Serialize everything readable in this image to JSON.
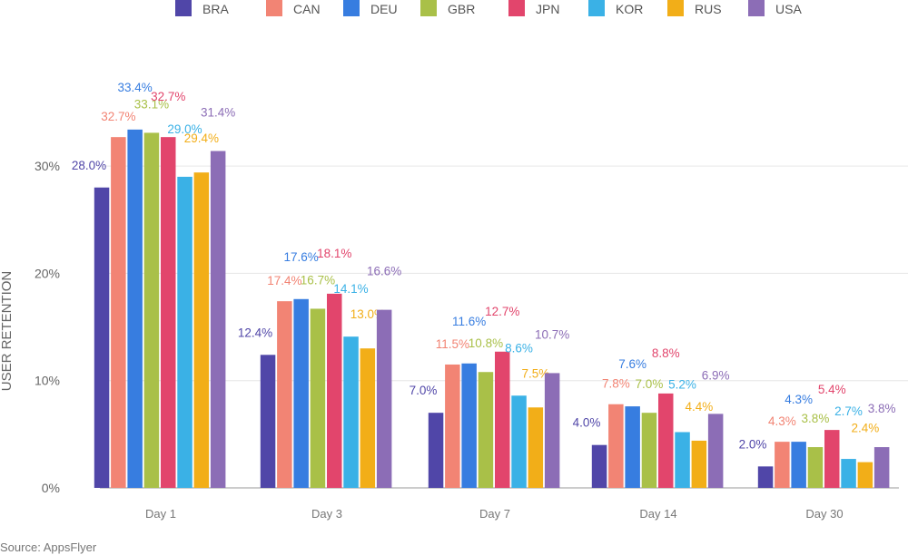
{
  "chart_data": {
    "type": "bar",
    "title": "",
    "xlabel": "",
    "ylabel": "USER RETENTION",
    "ylim": [
      0,
      35
    ],
    "yticks": [
      "0%",
      "10%",
      "20%",
      "30%"
    ],
    "ytick_values": [
      0,
      10,
      20,
      30
    ],
    "grid": true,
    "legend_placement": "top",
    "categories": [
      "Day 1",
      "Day 3",
      "Day 7",
      "Day 14",
      "Day 30"
    ],
    "series": [
      {
        "name": "BRA",
        "color": "#5046a8",
        "values": [
          28.0,
          12.4,
          7.0,
          4.0,
          2.0
        ]
      },
      {
        "name": "CAN",
        "color": "#f28474",
        "values": [
          32.7,
          17.4,
          11.5,
          7.8,
          4.3
        ]
      },
      {
        "name": "DEU",
        "color": "#377de0",
        "values": [
          33.4,
          17.6,
          11.6,
          7.6,
          4.3
        ]
      },
      {
        "name": "GBR",
        "color": "#a9c048",
        "values": [
          33.1,
          16.7,
          10.8,
          7.0,
          3.8
        ]
      },
      {
        "name": "JPN",
        "color": "#e2456c",
        "values": [
          32.7,
          18.1,
          12.7,
          8.8,
          5.4
        ]
      },
      {
        "name": "KOR",
        "color": "#3ab1e6",
        "values": [
          29.0,
          14.1,
          8.6,
          5.2,
          2.7
        ]
      },
      {
        "name": "RUS",
        "color": "#f2ae18",
        "values": [
          29.4,
          13.0,
          7.5,
          4.4,
          2.4
        ]
      },
      {
        "name": "USA",
        "color": "#8c6db6",
        "values": [
          31.4,
          16.6,
          10.7,
          6.9,
          3.8
        ]
      }
    ]
  },
  "source": "Source: AppsFlyer"
}
